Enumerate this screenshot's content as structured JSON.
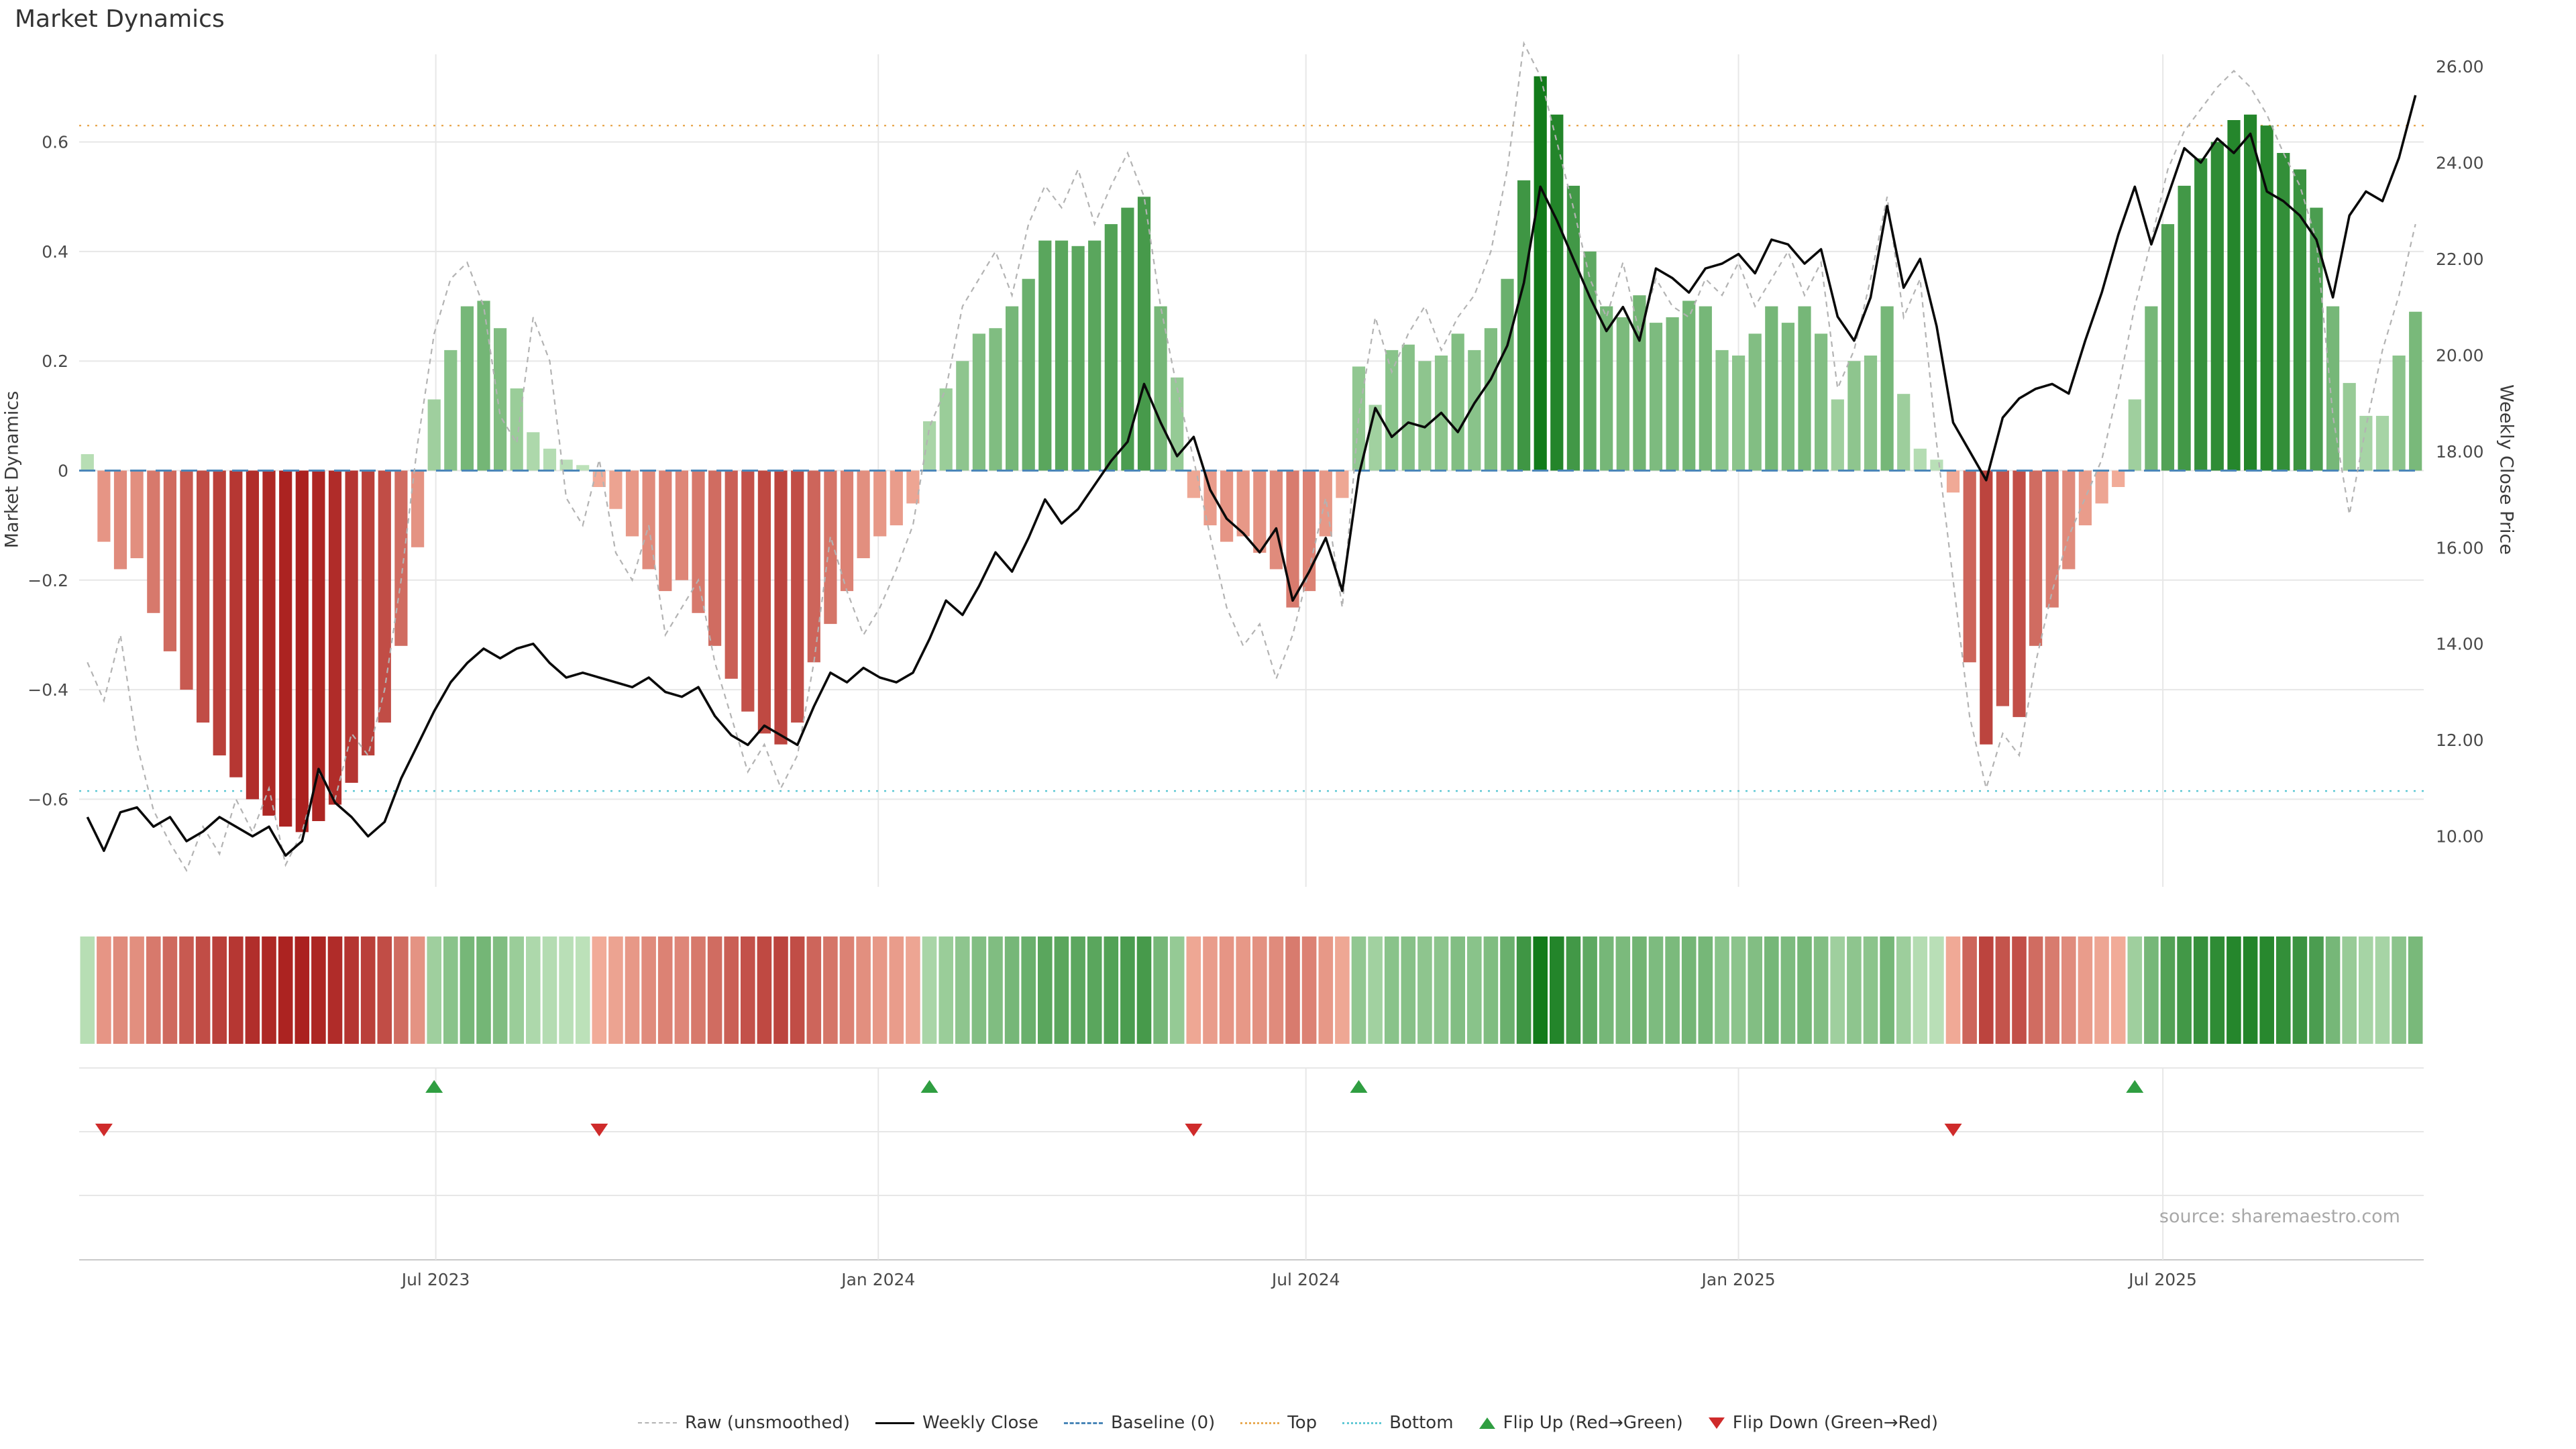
{
  "title": "Market Dynamics",
  "source": "source: sharemaestro.com",
  "colors": {
    "bar_green_light": "#bee2bb",
    "bar_green_dark": "#127b1a",
    "bar_red_light": "#f4b29e",
    "bar_red_dark": "#a41414",
    "raw_line": "#b3b3b3",
    "close_line": "#0a0a0a",
    "baseline": "#4a86b8",
    "top_line": "#e8a951",
    "bottom_line": "#5fc8d4",
    "flip_up": "#2f9e41",
    "flip_down": "#cf2b2b",
    "grid": "#e7e7e7",
    "axis_text": "#4a4a4a"
  },
  "legend": {
    "items": [
      {
        "label": "Raw (unsmoothed)"
      },
      {
        "label": "Weekly Close"
      },
      {
        "label": "Baseline (0)"
      },
      {
        "label": "Top"
      },
      {
        "label": "Bottom"
      },
      {
        "label": "Flip Up (Red→Green)"
      },
      {
        "label": "Flip Down (Green→Red)"
      }
    ]
  },
  "chart_data": {
    "type": "bar",
    "description": "Weekly market-dynamics oscillator bars (left axis) with weekly close price line (right axis), raw unsmoothed overlay, top/bottom thresholds, heatmap strip and red/green flip markers",
    "title": "Market Dynamics",
    "left_axis": {
      "label": "Market Dynamics",
      "min": -0.76,
      "max": 0.76,
      "ticks": [
        {
          "v": -0.6,
          "label": "−0.6"
        },
        {
          "v": -0.4,
          "label": "−0.4"
        },
        {
          "v": -0.2,
          "label": "−0.2"
        },
        {
          "v": 0,
          "label": "0"
        },
        {
          "v": 0.2,
          "label": "0.2"
        },
        {
          "v": 0.4,
          "label": "0.4"
        },
        {
          "v": 0.6,
          "label": "0.6"
        }
      ]
    },
    "right_axis": {
      "label": "Weekly Close Price",
      "min": 8.95,
      "max": 26.25,
      "ticks": [
        {
          "v": 10,
          "label": "10.00"
        },
        {
          "v": 12,
          "label": "12.00"
        },
        {
          "v": 14,
          "label": "14.00"
        },
        {
          "v": 16,
          "label": "16.00"
        },
        {
          "v": 18,
          "label": "18.00"
        },
        {
          "v": 20,
          "label": "20.00"
        },
        {
          "v": 22,
          "label": "22.00"
        },
        {
          "v": 24,
          "label": "24.00"
        },
        {
          "v": 26,
          "label": "26.00"
        }
      ]
    },
    "x_ticks": [
      {
        "pos": 21.1,
        "label": "Jul 2023"
      },
      {
        "pos": 47.9,
        "label": "Jan 2024"
      },
      {
        "pos": 73.8,
        "label": "Jul 2024"
      },
      {
        "pos": 100.0,
        "label": "Jan 2025"
      },
      {
        "pos": 125.7,
        "label": "Jul 2025"
      }
    ],
    "top_value": 0.63,
    "bottom_value": -0.585,
    "baseline_value": 0,
    "series": {
      "dynamics": [
        0.03,
        -0.13,
        -0.18,
        -0.16,
        -0.26,
        -0.33,
        -0.4,
        -0.46,
        -0.52,
        -0.56,
        -0.6,
        -0.63,
        -0.65,
        -0.66,
        -0.64,
        -0.61,
        -0.57,
        -0.52,
        -0.46,
        -0.32,
        -0.14,
        0.13,
        0.22,
        0.3,
        0.31,
        0.26,
        0.15,
        0.07,
        0.04,
        0.02,
        0.01,
        -0.03,
        -0.07,
        -0.12,
        -0.18,
        -0.22,
        -0.2,
        -0.26,
        -0.32,
        -0.38,
        -0.44,
        -0.48,
        -0.5,
        -0.46,
        -0.35,
        -0.28,
        -0.22,
        -0.16,
        -0.12,
        -0.1,
        -0.06,
        0.09,
        0.15,
        0.2,
        0.25,
        0.26,
        0.3,
        0.35,
        0.42,
        0.42,
        0.41,
        0.42,
        0.45,
        0.48,
        0.5,
        0.3,
        0.17,
        -0.05,
        -0.1,
        -0.13,
        -0.12,
        -0.15,
        -0.18,
        -0.25,
        -0.22,
        -0.12,
        -0.05,
        0.19,
        0.12,
        0.22,
        0.23,
        0.2,
        0.21,
        0.25,
        0.22,
        0.26,
        0.35,
        0.53,
        0.72,
        0.65,
        0.52,
        0.4,
        0.3,
        0.28,
        0.32,
        0.27,
        0.28,
        0.31,
        0.3,
        0.22,
        0.21,
        0.25,
        0.3,
        0.27,
        0.3,
        0.25,
        0.13,
        0.2,
        0.21,
        0.3,
        0.14,
        0.04,
        0.02,
        -0.04,
        -0.35,
        -0.5,
        -0.43,
        -0.45,
        -0.32,
        -0.25,
        -0.18,
        -0.1,
        -0.06,
        -0.03,
        0.13,
        0.3,
        0.45,
        0.52,
        0.57,
        0.6,
        0.64,
        0.65,
        0.63,
        0.58,
        0.55,
        0.48,
        0.3,
        0.16,
        0.1,
        0.1,
        0.21,
        0.29
      ],
      "weekly_close": [
        10.4,
        9.7,
        10.5,
        10.6,
        10.2,
        10.4,
        9.9,
        10.1,
        10.4,
        10.2,
        10.0,
        10.2,
        9.6,
        9.9,
        11.4,
        10.7,
        10.4,
        10.0,
        10.3,
        11.2,
        11.9,
        12.6,
        13.2,
        13.6,
        13.9,
        13.7,
        13.9,
        14.0,
        13.6,
        13.3,
        13.4,
        13.3,
        13.2,
        13.1,
        13.3,
        13.0,
        12.9,
        13.1,
        12.5,
        12.1,
        11.9,
        12.3,
        12.1,
        11.9,
        12.7,
        13.4,
        13.2,
        13.5,
        13.3,
        13.2,
        13.4,
        14.1,
        14.9,
        14.6,
        15.2,
        15.9,
        15.5,
        16.2,
        17.0,
        16.5,
        16.8,
        17.3,
        17.8,
        18.2,
        19.4,
        18.6,
        17.9,
        18.3,
        17.2,
        16.6,
        16.3,
        15.9,
        16.4,
        14.9,
        15.5,
        16.2,
        15.1,
        17.5,
        18.9,
        18.3,
        18.6,
        18.5,
        18.8,
        18.4,
        19.0,
        19.5,
        20.2,
        21.5,
        23.5,
        22.8,
        22.0,
        21.2,
        20.5,
        21.0,
        20.3,
        21.8,
        21.6,
        21.3,
        21.8,
        21.9,
        22.1,
        21.7,
        22.4,
        22.3,
        21.9,
        22.2,
        20.8,
        20.3,
        21.2,
        23.1,
        21.4,
        22.0,
        20.6,
        18.6,
        18.0,
        17.4,
        18.7,
        19.1,
        19.3,
        19.4,
        19.2,
        20.3,
        21.3,
        22.5,
        23.5,
        22.3,
        23.3,
        24.3,
        24.0,
        24.5,
        24.2,
        24.6,
        23.4,
        23.2,
        22.9,
        22.4,
        21.2,
        22.9,
        23.4,
        23.2,
        24.1,
        25.4
      ],
      "raw": [
        -0.35,
        -0.42,
        -0.3,
        -0.5,
        -0.62,
        -0.68,
        -0.73,
        -0.65,
        -0.7,
        -0.6,
        -0.66,
        -0.58,
        -0.72,
        -0.66,
        -0.55,
        -0.6,
        -0.48,
        -0.52,
        -0.4,
        -0.2,
        0.05,
        0.25,
        0.35,
        0.38,
        0.3,
        0.1,
        0.05,
        0.28,
        0.2,
        -0.05,
        -0.1,
        0.02,
        -0.15,
        -0.2,
        -0.1,
        -0.3,
        -0.25,
        -0.2,
        -0.35,
        -0.45,
        -0.55,
        -0.5,
        -0.58,
        -0.52,
        -0.35,
        -0.12,
        -0.22,
        -0.3,
        -0.25,
        -0.18,
        -0.1,
        0.08,
        0.15,
        0.3,
        0.35,
        0.4,
        0.32,
        0.45,
        0.52,
        0.48,
        0.55,
        0.45,
        0.52,
        0.58,
        0.5,
        0.3,
        0.15,
        0.02,
        -0.12,
        -0.25,
        -0.32,
        -0.28,
        -0.38,
        -0.3,
        -0.18,
        -0.05,
        -0.25,
        0.1,
        0.28,
        0.18,
        0.25,
        0.3,
        0.22,
        0.28,
        0.32,
        0.4,
        0.55,
        0.78,
        0.72,
        0.6,
        0.48,
        0.35,
        0.28,
        0.38,
        0.25,
        0.35,
        0.3,
        0.28,
        0.35,
        0.32,
        0.38,
        0.3,
        0.35,
        0.4,
        0.32,
        0.38,
        0.15,
        0.22,
        0.35,
        0.5,
        0.28,
        0.35,
        0.05,
        -0.2,
        -0.45,
        -0.58,
        -0.48,
        -0.52,
        -0.35,
        -0.22,
        -0.12,
        -0.05,
        0.02,
        0.15,
        0.3,
        0.42,
        0.55,
        0.62,
        0.66,
        0.7,
        0.73,
        0.7,
        0.65,
        0.58,
        0.52,
        0.42,
        0.1,
        -0.08,
        0.08,
        0.22,
        0.32,
        0.45
      ]
    },
    "flip_up": {
      "label": "Flip Up (Red→Green)",
      "indices": [
        21,
        51,
        77,
        124
      ]
    },
    "flip_down": {
      "label": "Flip Down (Green→Red)",
      "indices": [
        1,
        31,
        67,
        113
      ]
    }
  }
}
